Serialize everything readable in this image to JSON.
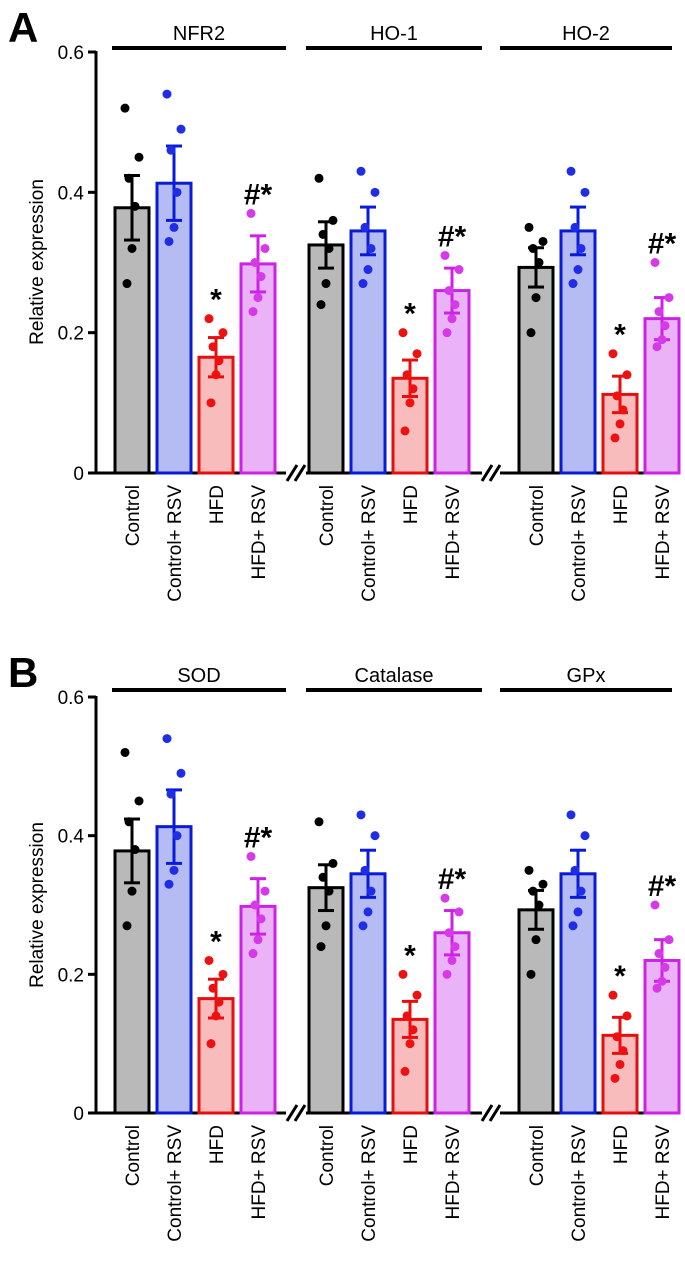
{
  "chart_data": [
    {
      "panel_label": "A",
      "type": "bar",
      "ylabel": "Relative expression",
      "ylim": [
        0,
        0.6
      ],
      "yticks": [
        "0",
        "0.2",
        "0.4",
        "0.6"
      ],
      "categories": [
        "Control",
        "Control+ RSV",
        "HFD",
        "HFD+ RSV"
      ],
      "groups": [
        {
          "name": "NFR2",
          "values": [
            0.378,
            0.413,
            0.165,
            0.298
          ],
          "errors": [
            0.046,
            0.053,
            0.028,
            0.04
          ],
          "points": [
            [
              0.52,
              0.45,
              0.42,
              0.38,
              0.32,
              0.27
            ],
            [
              0.54,
              0.49,
              0.46,
              0.4,
              0.35,
              0.33
            ],
            [
              0.22,
              0.2,
              0.18,
              0.16,
              0.14,
              0.1
            ],
            [
              0.37,
              0.32,
              0.3,
              0.28,
              0.25,
              0.23
            ]
          ],
          "significance": [
            "",
            "",
            "*",
            "#*"
          ]
        },
        {
          "name": "HO-1",
          "values": [
            0.325,
            0.345,
            0.135,
            0.26
          ],
          "errors": [
            0.033,
            0.034,
            0.026,
            0.032
          ],
          "points": [
            [
              0.42,
              0.36,
              0.34,
              0.32,
              0.27,
              0.24
            ],
            [
              0.43,
              0.4,
              0.35,
              0.32,
              0.29,
              0.27
            ],
            [
              0.2,
              0.17,
              0.14,
              0.12,
              0.1,
              0.06
            ],
            [
              0.31,
              0.29,
              0.26,
              0.24,
              0.22,
              0.2
            ]
          ],
          "significance": [
            "",
            "",
            "*",
            "#*"
          ]
        },
        {
          "name": "HO-2",
          "values": [
            0.293,
            0.345,
            0.112,
            0.22
          ],
          "errors": [
            0.028,
            0.034,
            0.026,
            0.03
          ],
          "points": [
            [
              0.35,
              0.33,
              0.32,
              0.3,
              0.25,
              0.2
            ],
            [
              0.43,
              0.4,
              0.35,
              0.32,
              0.29,
              0.27
            ],
            [
              0.17,
              0.14,
              0.11,
              0.09,
              0.07,
              0.05
            ],
            [
              0.3,
              0.25,
              0.23,
              0.21,
              0.19,
              0.18
            ]
          ],
          "significance": [
            "",
            "",
            "*",
            "#*"
          ]
        }
      ]
    },
    {
      "panel_label": "B",
      "type": "bar",
      "ylabel": "Relative expression",
      "ylim": [
        0,
        0.6
      ],
      "yticks": [
        "0",
        "0.2",
        "0.4",
        "0.6"
      ],
      "categories": [
        "Control",
        "Control+ RSV",
        "HFD",
        "HFD+ RSV"
      ],
      "groups": [
        {
          "name": "SOD",
          "values": [
            0.378,
            0.413,
            0.165,
            0.298
          ],
          "errors": [
            0.046,
            0.053,
            0.028,
            0.04
          ],
          "points": [
            [
              0.52,
              0.45,
              0.42,
              0.38,
              0.32,
              0.27
            ],
            [
              0.54,
              0.49,
              0.46,
              0.4,
              0.35,
              0.33
            ],
            [
              0.22,
              0.2,
              0.18,
              0.16,
              0.14,
              0.1
            ],
            [
              0.37,
              0.32,
              0.3,
              0.28,
              0.25,
              0.23
            ]
          ],
          "significance": [
            "",
            "",
            "*",
            "#*"
          ]
        },
        {
          "name": "Catalase",
          "values": [
            0.325,
            0.345,
            0.135,
            0.26
          ],
          "errors": [
            0.033,
            0.034,
            0.026,
            0.032
          ],
          "points": [
            [
              0.42,
              0.36,
              0.34,
              0.32,
              0.27,
              0.24
            ],
            [
              0.43,
              0.4,
              0.35,
              0.32,
              0.29,
              0.27
            ],
            [
              0.2,
              0.17,
              0.14,
              0.12,
              0.1,
              0.06
            ],
            [
              0.31,
              0.29,
              0.26,
              0.24,
              0.22,
              0.2
            ]
          ],
          "significance": [
            "",
            "",
            "*",
            "#*"
          ]
        },
        {
          "name": "GPx",
          "values": [
            0.293,
            0.345,
            0.112,
            0.22
          ],
          "errors": [
            0.028,
            0.034,
            0.026,
            0.03
          ],
          "points": [
            [
              0.35,
              0.33,
              0.32,
              0.3,
              0.25,
              0.2
            ],
            [
              0.43,
              0.4,
              0.35,
              0.32,
              0.29,
              0.27
            ],
            [
              0.17,
              0.14,
              0.11,
              0.09,
              0.07,
              0.05
            ],
            [
              0.3,
              0.25,
              0.23,
              0.21,
              0.19,
              0.18
            ]
          ],
          "significance": [
            "",
            "",
            "*",
            "#*"
          ]
        }
      ]
    }
  ],
  "colors": {
    "fills": [
      "#b9b9b9",
      "#b4bcf3",
      "#f9bcbc",
      "#eab3f7"
    ],
    "strokes": [
      "#000000",
      "#0a1bd8",
      "#e60f0f",
      "#cc22e6"
    ],
    "dots": [
      "#000000",
      "#1f2ee6",
      "#ee1111",
      "#d63ae8"
    ]
  }
}
